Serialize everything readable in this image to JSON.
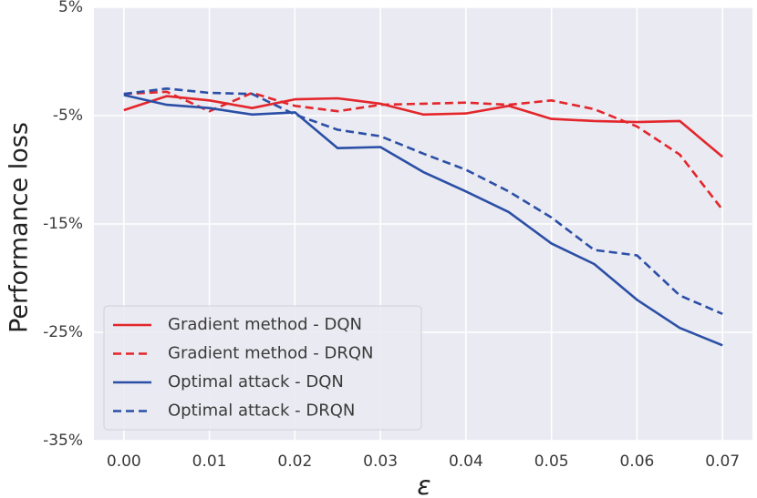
{
  "chart_data": {
    "type": "line",
    "title": "",
    "xlabel": "ε",
    "ylabel": "Performance loss",
    "xlim": [
      -0.0035,
      0.0735
    ],
    "ylim": [
      -35,
      5
    ],
    "x_ticks": [
      0.0,
      0.01,
      0.02,
      0.03,
      0.04,
      0.05,
      0.06,
      0.07
    ],
    "x_tick_labels": [
      "0.00",
      "0.01",
      "0.02",
      "0.03",
      "0.04",
      "0.05",
      "0.06",
      "0.07"
    ],
    "y_ticks": [
      5,
      -5,
      -15,
      -25,
      -35
    ],
    "y_tick_labels": [
      "5%",
      "-5%",
      "-15%",
      "-25%",
      "-35%"
    ],
    "grid": true,
    "legend_position": "lower-left",
    "x": [
      0.0,
      0.005,
      0.01,
      0.015,
      0.02,
      0.025,
      0.03,
      0.035,
      0.04,
      0.045,
      0.05,
      0.055,
      0.06,
      0.065,
      0.07
    ],
    "series": [
      {
        "name": "Gradient method - DQN",
        "color": "#e3262b",
        "dash": "solid",
        "values": [
          -4.5,
          -3.2,
          -3.6,
          -4.3,
          -3.5,
          -3.4,
          -3.9,
          -4.9,
          -4.8,
          -4.1,
          -5.3,
          -5.5,
          -5.6,
          -5.5,
          -8.8
        ]
      },
      {
        "name": "Gradient method - DRQN",
        "color": "#e3262b",
        "dash": "dashed",
        "values": [
          -3.0,
          -2.8,
          -4.6,
          -2.9,
          -4.1,
          -4.6,
          -4.0,
          -3.9,
          -3.8,
          -4.0,
          -3.6,
          -4.4,
          -6.0,
          -8.6,
          -13.7
        ]
      },
      {
        "name": "Optimal attack - DQN",
        "color": "#2b4fa6",
        "dash": "solid",
        "values": [
          -3.1,
          -4.0,
          -4.3,
          -4.9,
          -4.7,
          -8.0,
          -7.9,
          -10.2,
          -12.0,
          -13.9,
          -16.8,
          -18.7,
          -22.0,
          -24.6,
          -26.2
        ]
      },
      {
        "name": "Optimal attack - DRQN",
        "color": "#2b4fa6",
        "dash": "dashed",
        "values": [
          -3.0,
          -2.5,
          -2.9,
          -3.0,
          -4.9,
          -6.3,
          -6.9,
          -8.5,
          -10.0,
          -12.0,
          -14.4,
          -17.4,
          -17.9,
          -21.6,
          -23.3
        ]
      }
    ]
  }
}
